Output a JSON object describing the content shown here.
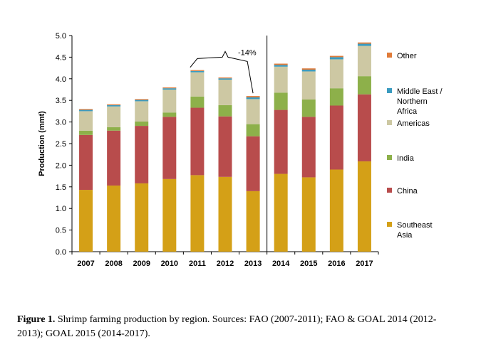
{
  "chart_data": {
    "type": "bar",
    "stacked": true,
    "categories": [
      "2007",
      "2008",
      "2009",
      "2010",
      "2011",
      "2012",
      "2013",
      "2014",
      "2015",
      "2016",
      "2017"
    ],
    "series": [
      {
        "name": "Southeast Asia",
        "color": "#d4a017",
        "values": [
          1.43,
          1.53,
          1.58,
          1.68,
          1.77,
          1.73,
          1.4,
          1.8,
          1.72,
          1.9,
          2.09
        ]
      },
      {
        "name": "China",
        "color": "#b84c4c",
        "values": [
          1.27,
          1.27,
          1.33,
          1.44,
          1.56,
          1.4,
          1.27,
          1.48,
          1.4,
          1.48,
          1.55
        ]
      },
      {
        "name": "India",
        "color": "#8db04a",
        "values": [
          0.1,
          0.08,
          0.1,
          0.1,
          0.26,
          0.26,
          0.28,
          0.4,
          0.4,
          0.4,
          0.42
        ]
      },
      {
        "name": "Americas",
        "color": "#cdc8a3",
        "values": [
          0.45,
          0.48,
          0.47,
          0.53,
          0.56,
          0.59,
          0.58,
          0.6,
          0.65,
          0.67,
          0.7
        ]
      },
      {
        "name": "Middle East / Northern Africa",
        "color": "#3a9bc0",
        "values": [
          0.03,
          0.03,
          0.03,
          0.03,
          0.03,
          0.03,
          0.04,
          0.04,
          0.04,
          0.05,
          0.05
        ]
      },
      {
        "name": "Other",
        "color": "#e07b39",
        "values": [
          0.02,
          0.02,
          0.02,
          0.02,
          0.02,
          0.02,
          0.03,
          0.03,
          0.03,
          0.03,
          0.03
        ]
      }
    ],
    "ylabel": "Production (mmt)",
    "xlabel": "",
    "ylim": [
      0,
      5.0
    ],
    "yticks": [
      "0.0",
      "0.5",
      "1.0",
      "1.5",
      "2.0",
      "2.5",
      "3.0",
      "3.5",
      "4.0",
      "4.5",
      "5.0"
    ],
    "grid": false,
    "legend": "right",
    "legend_order": [
      "Other",
      "Middle East / Northern Africa",
      "Americas",
      "India",
      "China",
      "Southeast Asia"
    ],
    "legend_lines": {
      "Other": [
        "Other"
      ],
      "Middle East / Northern Africa": [
        "Middle East /",
        "Northern",
        "Africa"
      ],
      "Americas": [
        "Americas"
      ],
      "India": [
        "India"
      ],
      "China": [
        "China"
      ],
      "Southeast Asia": [
        "Southeast",
        "Asia"
      ]
    },
    "annotation": {
      "text": "-14%",
      "from": "2011",
      "to": "2013"
    },
    "separator_between": [
      "2013",
      "2014"
    ]
  },
  "caption": {
    "label": "Figure 1.",
    "text": " Shrimp farming production by region. Sources: FAO (2007-2011); FAO & GOAL 2014 (2012-2013); GOAL 2015 (2014-2017)."
  }
}
